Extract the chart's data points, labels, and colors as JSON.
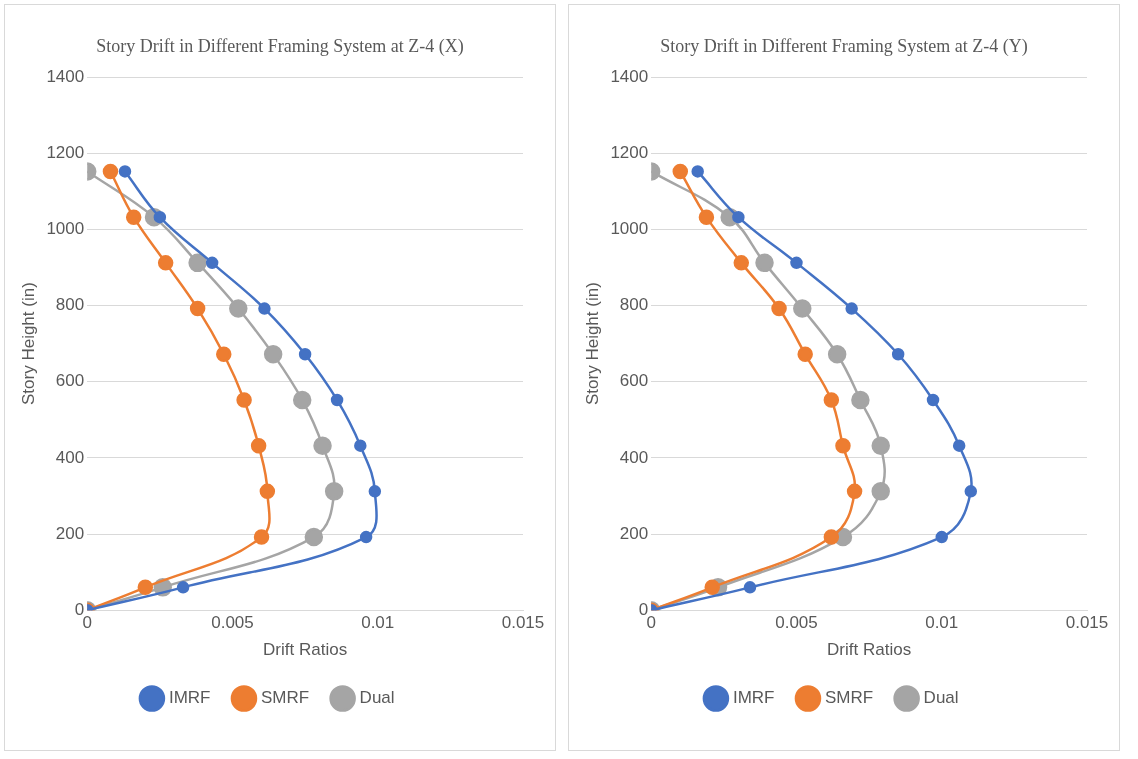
{
  "chart_data": [
    {
      "type": "line",
      "title": "Story Drift in Different Framing System at Z-4 (X)",
      "xlabel": "Drift Ratios",
      "ylabel": "Story Height (in)",
      "xlim": [
        0,
        0.015
      ],
      "xticks": [
        0,
        0.005,
        0.01,
        0.015
      ],
      "ylim": [
        0,
        1400
      ],
      "yticks": [
        0,
        200,
        400,
        600,
        800,
        1000,
        1200,
        1400
      ],
      "grid": "y",
      "legend": "bottom",
      "marker": "circle",
      "line_style": "solid",
      "series": [
        {
          "name": "IMRF",
          "color": "#4472c4",
          "x": [
            0,
            0.0033,
            0.0096,
            0.0099,
            0.0094,
            0.0086,
            0.0075,
            0.0061,
            0.0043,
            0.0025,
            0.0013
          ],
          "values": [
            0,
            60,
            192,
            312,
            432,
            552,
            672,
            792,
            912,
            1032,
            1152
          ]
        },
        {
          "name": "SMRF",
          "color": "#ed7d31",
          "x": [
            0,
            0.002,
            0.006,
            0.0062,
            0.0059,
            0.0054,
            0.0047,
            0.0038,
            0.0027,
            0.0016,
            0.0008
          ],
          "values": [
            0,
            60,
            192,
            312,
            432,
            552,
            672,
            792,
            912,
            1032,
            1152
          ]
        },
        {
          "name": "Dual",
          "color": "#a5a5a5",
          "x": [
            0,
            0.0026,
            0.0078,
            0.0085,
            0.0081,
            0.0074,
            0.0064,
            0.0052,
            0.0038,
            0.0023,
            0
          ],
          "values": [
            0,
            60,
            192,
            312,
            432,
            552,
            672,
            792,
            912,
            1032,
            1152
          ]
        }
      ]
    },
    {
      "type": "line",
      "title": "Story Drift in Different Framing System at Z-4 (Y)",
      "xlabel": "Drift Ratios",
      "ylabel": "Story Height (in)",
      "xlim": [
        0,
        0.015
      ],
      "xticks": [
        0,
        0.005,
        0.01,
        0.015
      ],
      "ylim": [
        0,
        1400
      ],
      "yticks": [
        0,
        200,
        400,
        600,
        800,
        1000,
        1200,
        1400
      ],
      "grid": "y",
      "legend": "bottom",
      "marker": "circle",
      "line_style": "solid",
      "series": [
        {
          "name": "IMRF",
          "color": "#4472c4",
          "x": [
            0,
            0.0034,
            0.01,
            0.011,
            0.0106,
            0.0097,
            0.0085,
            0.0069,
            0.005,
            0.003,
            0.0016
          ],
          "values": [
            0,
            60,
            192,
            312,
            432,
            552,
            672,
            792,
            912,
            1032,
            1152
          ]
        },
        {
          "name": "SMRF",
          "color": "#ed7d31",
          "x": [
            0,
            0.0021,
            0.0062,
            0.007,
            0.0066,
            0.0062,
            0.0053,
            0.0044,
            0.0031,
            0.0019,
            0.001
          ],
          "values": [
            0,
            60,
            192,
            312,
            432,
            552,
            672,
            792,
            912,
            1032,
            1152
          ]
        },
        {
          "name": "Dual",
          "color": "#a5a5a5",
          "x": [
            0,
            0.0023,
            0.0066,
            0.0079,
            0.0079,
            0.0072,
            0.0064,
            0.0052,
            0.0039,
            0.0027,
            0
          ],
          "values": [
            0,
            60,
            192,
            312,
            432,
            552,
            672,
            792,
            912,
            1032,
            1152
          ]
        }
      ]
    }
  ]
}
